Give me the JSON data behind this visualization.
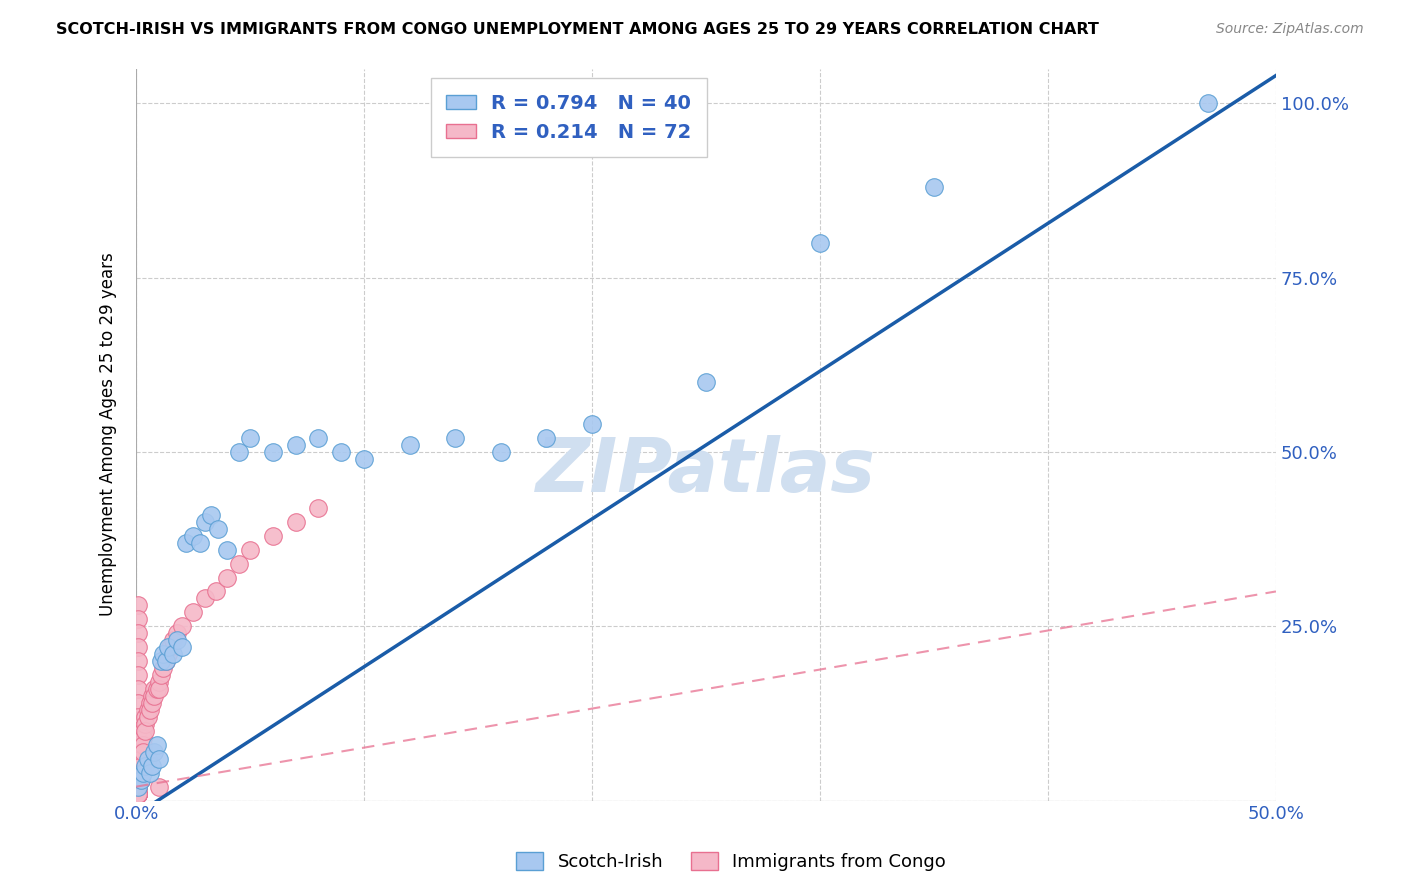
{
  "title": "SCOTCH-IRISH VS IMMIGRANTS FROM CONGO UNEMPLOYMENT AMONG AGES 25 TO 29 YEARS CORRELATION CHART",
  "source": "Source: ZipAtlas.com",
  "ylabel": "Unemployment Among Ages 25 to 29 years",
  "xlim": [
    0,
    0.5
  ],
  "ylim": [
    0,
    1.05
  ],
  "scotch_irish_R": 0.794,
  "scotch_irish_N": 40,
  "congo_R": 0.214,
  "congo_N": 72,
  "scotch_irish_color": "#a8c8f0",
  "scotch_irish_edge_color": "#5a9fd4",
  "congo_color": "#f5b8c8",
  "congo_edge_color": "#e87090",
  "regression_blue_color": "#1a5ca8",
  "regression_pink_color": "#e87090",
  "grid_color": "#cccccc",
  "watermark_color": "#d0dff0",
  "scotch_irish_x": [
    0.001,
    0.002,
    0.003,
    0.004,
    0.005,
    0.006,
    0.007,
    0.008,
    0.009,
    0.01,
    0.011,
    0.012,
    0.013,
    0.014,
    0.016,
    0.018,
    0.02,
    0.022,
    0.025,
    0.028,
    0.03,
    0.033,
    0.036,
    0.04,
    0.045,
    0.05,
    0.06,
    0.07,
    0.08,
    0.09,
    0.1,
    0.12,
    0.14,
    0.16,
    0.18,
    0.2,
    0.25,
    0.3,
    0.35,
    0.47
  ],
  "scotch_irish_y": [
    0.02,
    0.03,
    0.04,
    0.05,
    0.06,
    0.04,
    0.05,
    0.07,
    0.08,
    0.06,
    0.2,
    0.21,
    0.2,
    0.22,
    0.21,
    0.23,
    0.22,
    0.37,
    0.38,
    0.37,
    0.4,
    0.41,
    0.39,
    0.36,
    0.5,
    0.52,
    0.5,
    0.51,
    0.52,
    0.5,
    0.49,
    0.51,
    0.52,
    0.5,
    0.52,
    0.54,
    0.6,
    0.8,
    0.88,
    1.0
  ],
  "congo_x": [
    0.001,
    0.001,
    0.001,
    0.001,
    0.001,
    0.001,
    0.001,
    0.001,
    0.001,
    0.001,
    0.001,
    0.001,
    0.001,
    0.001,
    0.001,
    0.001,
    0.001,
    0.001,
    0.001,
    0.001,
    0.001,
    0.001,
    0.001,
    0.001,
    0.001,
    0.001,
    0.001,
    0.001,
    0.001,
    0.001,
    0.002,
    0.002,
    0.002,
    0.002,
    0.002,
    0.002,
    0.003,
    0.003,
    0.003,
    0.003,
    0.004,
    0.004,
    0.004,
    0.005,
    0.005,
    0.006,
    0.006,
    0.007,
    0.007,
    0.008,
    0.008,
    0.009,
    0.01,
    0.01,
    0.011,
    0.012,
    0.013,
    0.014,
    0.015,
    0.016,
    0.018,
    0.02,
    0.025,
    0.03,
    0.035,
    0.04,
    0.045,
    0.05,
    0.06,
    0.07,
    0.08,
    0.01
  ],
  "congo_y": [
    0.28,
    0.26,
    0.24,
    0.22,
    0.2,
    0.18,
    0.16,
    0.14,
    0.12,
    0.1,
    0.08,
    0.07,
    0.06,
    0.05,
    0.04,
    0.03,
    0.02,
    0.02,
    0.02,
    0.02,
    0.02,
    0.01,
    0.01,
    0.01,
    0.01,
    0.01,
    0.01,
    0.01,
    0.01,
    0.01,
    0.08,
    0.07,
    0.06,
    0.05,
    0.04,
    0.03,
    0.1,
    0.09,
    0.08,
    0.07,
    0.12,
    0.11,
    0.1,
    0.13,
    0.12,
    0.14,
    0.13,
    0.15,
    0.14,
    0.16,
    0.15,
    0.16,
    0.17,
    0.16,
    0.18,
    0.19,
    0.2,
    0.21,
    0.22,
    0.23,
    0.24,
    0.25,
    0.27,
    0.29,
    0.3,
    0.32,
    0.34,
    0.36,
    0.38,
    0.4,
    0.42,
    0.02
  ]
}
